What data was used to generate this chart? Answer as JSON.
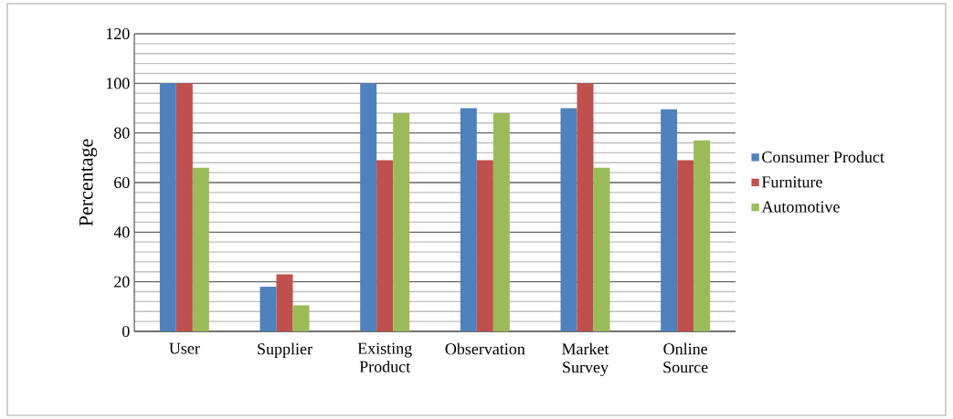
{
  "chart_data": {
    "type": "bar",
    "ylabel": "Percentage",
    "categories": [
      "User",
      "Supplier",
      "Existing Product",
      "Observation",
      "Market Survey",
      "Online Source"
    ],
    "series": [
      {
        "name": "Consumer Product",
        "color": "#4f81bd",
        "values": [
          100,
          18,
          100,
          90,
          90,
          89.5
        ]
      },
      {
        "name": "Furniture",
        "color": "#c0504d",
        "values": [
          100,
          23,
          69,
          69,
          100,
          69
        ]
      },
      {
        "name": "Automotive",
        "color": "#9bbb59",
        "values": [
          66,
          10.5,
          88,
          88,
          66,
          77
        ]
      }
    ],
    "ylim": [
      0,
      120
    ],
    "yticks": [
      0,
      20,
      40,
      60,
      80,
      100,
      120
    ],
    "grid": "y",
    "legend": "right"
  }
}
